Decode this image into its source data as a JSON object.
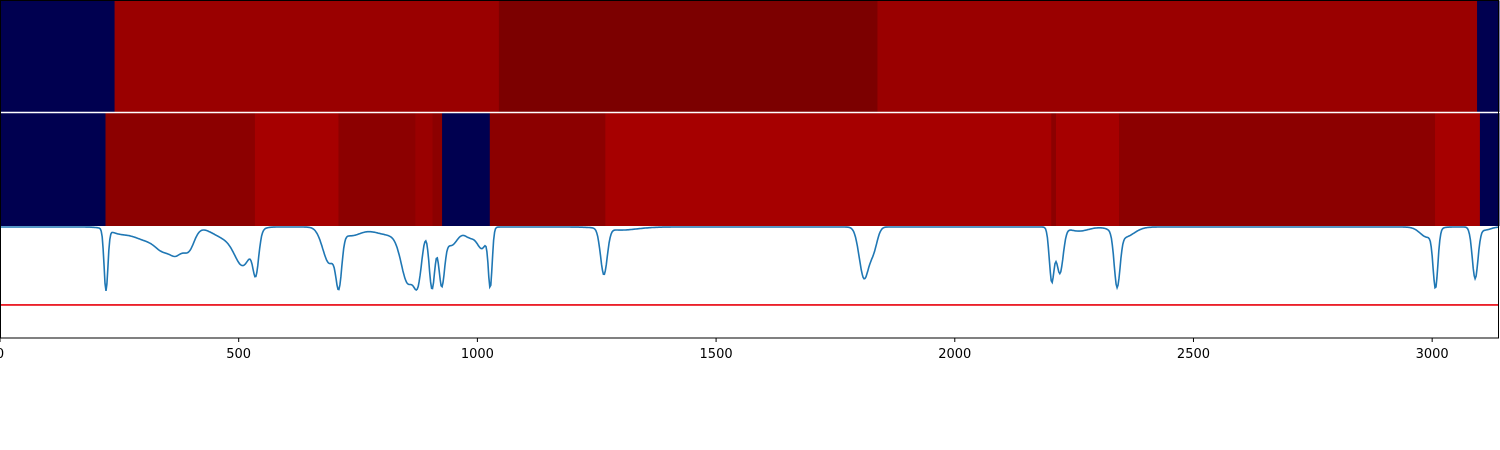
{
  "colors": {
    "frame": "#000000",
    "background": "#ffffff",
    "line": "#1f77b4",
    "threshold": "#e8000b",
    "separator": "#ffffff"
  },
  "chart_data": {
    "type": "heatmap",
    "xlim": [
      0,
      3140
    ],
    "xticks": [
      {
        "value": 0,
        "label": "0"
      },
      {
        "value": 500,
        "label": "500"
      },
      {
        "value": 1000,
        "label": "1000"
      },
      {
        "value": 1500,
        "label": "1500"
      },
      {
        "value": 2000,
        "label": "2000"
      },
      {
        "value": 2500,
        "label": "2500"
      },
      {
        "value": 3000,
        "label": "3000"
      }
    ],
    "segment_rows": [
      [
        {
          "start": 0,
          "end": 240,
          "color": "#000050"
        },
        {
          "start": 240,
          "end": 1045,
          "color": "#9a0000"
        },
        {
          "start": 1045,
          "end": 1838,
          "color": "#7c0000"
        },
        {
          "start": 1838,
          "end": 3094,
          "color": "#9a0000"
        },
        {
          "start": 3094,
          "end": 3140,
          "color": "#000050"
        }
      ],
      [
        {
          "start": 0,
          "end": 221,
          "color": "#000050"
        },
        {
          "start": 221,
          "end": 534,
          "color": "#8c0000"
        },
        {
          "start": 534,
          "end": 709,
          "color": "#a60000"
        },
        {
          "start": 709,
          "end": 870,
          "color": "#8c0000"
        },
        {
          "start": 870,
          "end": 906,
          "color": "#9a0000"
        },
        {
          "start": 906,
          "end": 926,
          "color": "#8c0000"
        },
        {
          "start": 926,
          "end": 1026,
          "color": "#000050"
        },
        {
          "start": 1026,
          "end": 1268,
          "color": "#8c0000"
        },
        {
          "start": 1268,
          "end": 2202,
          "color": "#a60000"
        },
        {
          "start": 2202,
          "end": 2212,
          "color": "#8c0000"
        },
        {
          "start": 2212,
          "end": 2344,
          "color": "#a60000"
        },
        {
          "start": 2344,
          "end": 3006,
          "color": "#8c0000"
        },
        {
          "start": 3006,
          "end": 3100,
          "color": "#a60000"
        },
        {
          "start": 3100,
          "end": 3140,
          "color": "#000050"
        }
      ]
    ],
    "line_series": {
      "baseline": 0.99,
      "ylim": [
        -0.1,
        1.0
      ],
      "threshold": 0.225,
      "dips": [
        {
          "center": 222,
          "depth": 0.6,
          "width": 4
        },
        {
          "center": 250,
          "depth": 0.06,
          "width": 22
        },
        {
          "center": 305,
          "depth": 0.12,
          "width": 25
        },
        {
          "center": 345,
          "depth": 0.2,
          "width": 18
        },
        {
          "center": 370,
          "depth": 0.18,
          "width": 12
        },
        {
          "center": 395,
          "depth": 0.22,
          "width": 12
        },
        {
          "center": 470,
          "depth": 0.1,
          "width": 25
        },
        {
          "center": 510,
          "depth": 0.35,
          "width": 18
        },
        {
          "center": 536,
          "depth": 0.36,
          "width": 6
        },
        {
          "center": 690,
          "depth": 0.35,
          "width": 14
        },
        {
          "center": 710,
          "depth": 0.45,
          "width": 6
        },
        {
          "center": 735,
          "depth": 0.08,
          "width": 20
        },
        {
          "center": 820,
          "depth": 0.08,
          "width": 35
        },
        {
          "center": 855,
          "depth": 0.5,
          "width": 14
        },
        {
          "center": 876,
          "depth": 0.4,
          "width": 8
        },
        {
          "center": 905,
          "depth": 0.6,
          "width": 6
        },
        {
          "center": 925,
          "depth": 0.52,
          "width": 6
        },
        {
          "center": 945,
          "depth": 0.18,
          "width": 14
        },
        {
          "center": 985,
          "depth": 0.1,
          "width": 12
        },
        {
          "center": 1010,
          "depth": 0.2,
          "width": 10
        },
        {
          "center": 1027,
          "depth": 0.55,
          "width": 4
        },
        {
          "center": 1265,
          "depth": 0.45,
          "width": 7
        },
        {
          "center": 1300,
          "depth": 0.03,
          "width": 35
        },
        {
          "center": 1810,
          "depth": 0.5,
          "width": 10
        },
        {
          "center": 1830,
          "depth": 0.2,
          "width": 8
        },
        {
          "center": 2203,
          "depth": 0.52,
          "width": 5
        },
        {
          "center": 2220,
          "depth": 0.45,
          "width": 7
        },
        {
          "center": 2260,
          "depth": 0.04,
          "width": 20
        },
        {
          "center": 2340,
          "depth": 0.52,
          "width": 6
        },
        {
          "center": 2355,
          "depth": 0.1,
          "width": 20
        },
        {
          "center": 2990,
          "depth": 0.1,
          "width": 15
        },
        {
          "center": 3007,
          "depth": 0.55,
          "width": 5
        },
        {
          "center": 3090,
          "depth": 0.5,
          "width": 6
        },
        {
          "center": 3110,
          "depth": 0.03,
          "width": 12
        }
      ]
    }
  }
}
